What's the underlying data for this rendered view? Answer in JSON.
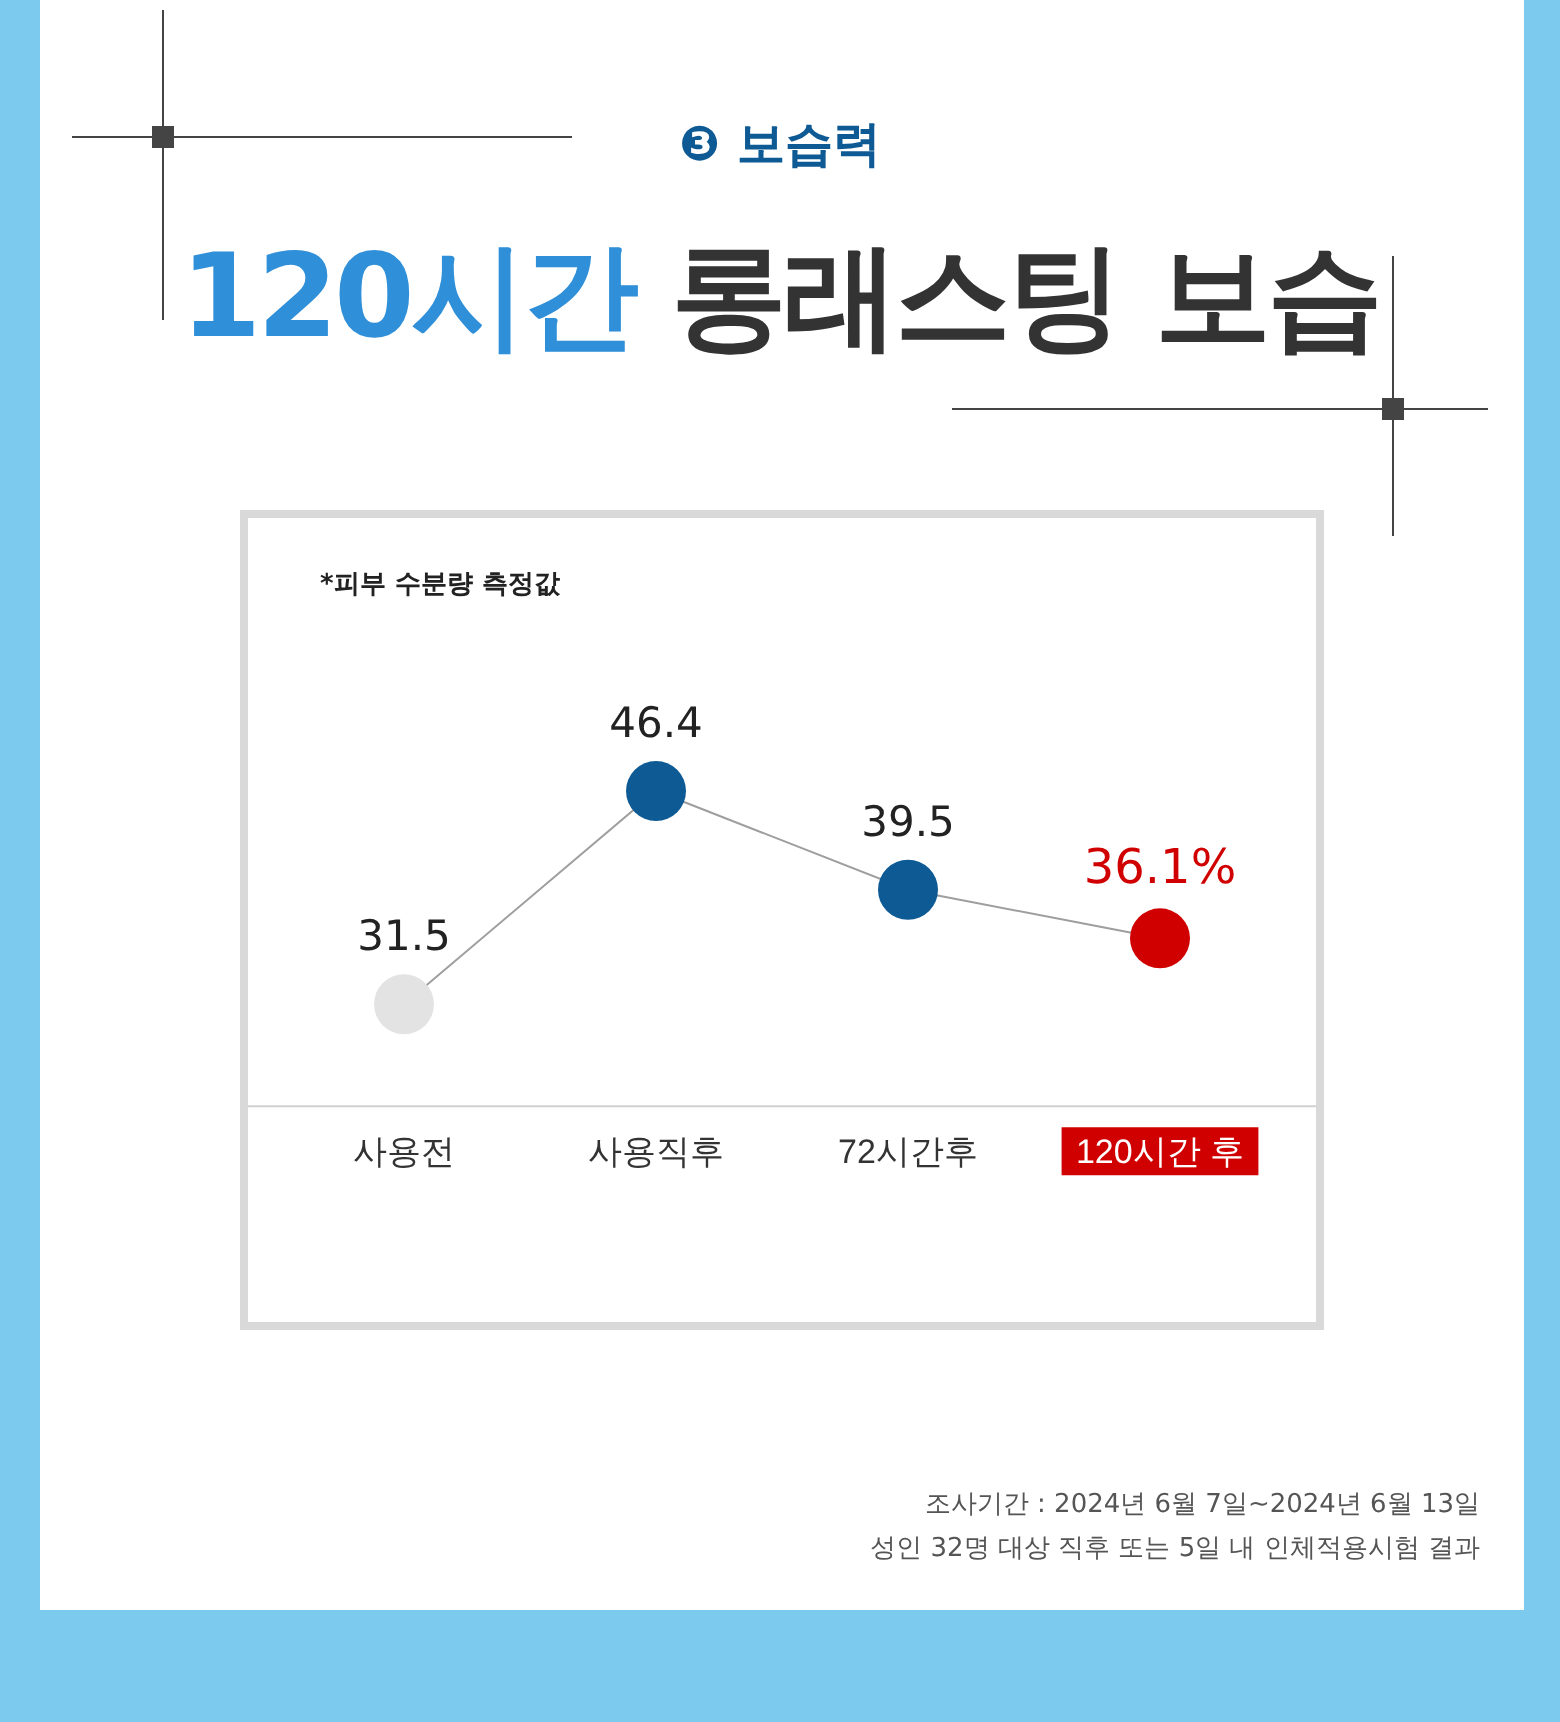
{
  "chart_data": {
    "type": "line",
    "title": "120시간 롱래스팅 보습",
    "subtitle": "❸ 보습력",
    "categories": [
      "사용전",
      "사용직후",
      "72시간후",
      "120시간 후"
    ],
    "series": [
      {
        "color": "#9e9e9e",
        "colors": [
          "#e3e3e3",
          "#0e5a94",
          "#0e5a94",
          "#d10000"
        ],
        "values": [
          31.5,
          46.4,
          39.5,
          36.1
        ],
        "value_labels": [
          "31.5",
          "46.4",
          "39.5",
          "36.1%"
        ]
      }
    ],
    "marker": "circle",
    "grid": false,
    "legend": false,
    "tick_labels": "x",
    "annotations": [
      "*피부 수분량 측정값",
      "조사기간 : 2024년 6월 7일~2024년 6월 13일",
      "성인 32명 대상 직후 또는 5일 내 인체적용시험 결과"
    ]
  }
}
